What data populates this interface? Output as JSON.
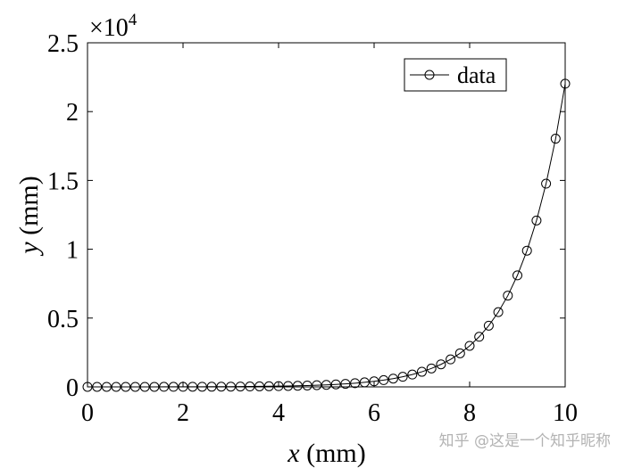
{
  "chart_data": {
    "type": "line",
    "xlabel_var": "x",
    "xlabel_unit": " (mm)",
    "ylabel_var": "y",
    "ylabel_unit": " (mm)",
    "exponent_label": "×10",
    "exponent_power": "4",
    "xlim": [
      0,
      10
    ],
    "ylim": [
      0,
      25000
    ],
    "xticks": [
      0,
      2,
      4,
      6,
      8,
      10
    ],
    "xtick_labels": [
      "0",
      "2",
      "4",
      "6",
      "8",
      "10"
    ],
    "yticks": [
      0,
      5000,
      10000,
      15000,
      20000,
      25000
    ],
    "ytick_labels": [
      "0",
      "0.5",
      "1",
      "1.5",
      "2",
      "2.5"
    ],
    "grid": false,
    "legend_position": "top-right",
    "series": [
      {
        "name": "data",
        "marker": "circle",
        "color": "#000000",
        "x": [
          0,
          0.2,
          0.4,
          0.6,
          0.8,
          1.0,
          1.2,
          1.4,
          1.6,
          1.8,
          2.0,
          2.2,
          2.4,
          2.6,
          2.8,
          3.0,
          3.2,
          3.4,
          3.6,
          3.8,
          4.0,
          4.2,
          4.4,
          4.6,
          4.8,
          5.0,
          5.2,
          5.4,
          5.6,
          5.8,
          6.0,
          6.2,
          6.4,
          6.6,
          6.8,
          7.0,
          7.2,
          7.4,
          7.6,
          7.8,
          8.0,
          8.2,
          8.4,
          8.6,
          8.8,
          9.0,
          9.2,
          9.4,
          9.6,
          9.8,
          10.0
        ],
        "y": [
          1,
          1,
          1,
          2,
          2,
          3,
          3,
          4,
          5,
          6,
          7,
          9,
          11,
          13,
          16,
          20,
          25,
          30,
          37,
          45,
          55,
          67,
          81,
          99,
          122,
          148,
          181,
          221,
          270,
          330,
          403,
          493,
          602,
          735,
          898,
          1097,
          1339,
          1636,
          1998,
          2440,
          2981,
          3641,
          4447,
          5432,
          6634,
          8103,
          9897,
          12088,
          14765,
          18034,
          22026
        ]
      }
    ]
  },
  "watermark": "知乎 @这是一个知乎昵称"
}
